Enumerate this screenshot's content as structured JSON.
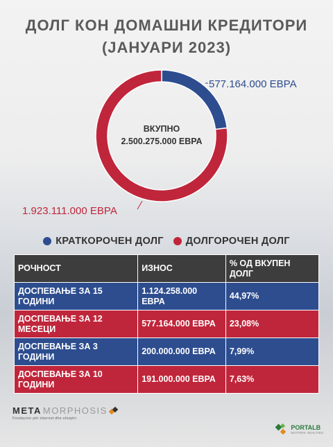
{
  "title_line1": "ДОЛГ КОН ДОМАШНИ КРЕДИТОРИ",
  "title_line2": "(ЈАНУАРИ 2023)",
  "chart_data": {
    "type": "pie",
    "donut": true,
    "title": "ДОЛГ КОН ДОМАШНИ КРЕДИТОРИ (ЈАНУАРИ 2023)",
    "center_label": "ВКУПНО",
    "center_value": "2.500.275.000 ЕВРА",
    "series": [
      {
        "name": "КРАТКОРОЧЕН ДОЛГ",
        "value": 577164000,
        "label": "577.164.000 ЕВРА",
        "color": "#2d4d8f"
      },
      {
        "name": "ДОЛГОРОЧЕН ДОЛГ",
        "value": 1923111000,
        "label": "1.923.111.000 ЕВРА",
        "color": "#c0263b"
      }
    ],
    "legend_placement": "bottom"
  },
  "table": {
    "headers": [
      "РОЧНОСТ",
      "ИЗНОС",
      "% ОД ВКУПЕН ДОЛГ"
    ],
    "rows": [
      {
        "maturity": "ДОСПЕВАЊЕ ЗА 15 ГОДИНИ",
        "amount": "1.124.258.000 ЕВРА",
        "percent": "44,97%",
        "color": "blue"
      },
      {
        "maturity": "ДОСПЕВАЊЕ ЗА 12 МЕСЕЦИ",
        "amount": "577.164.000 ЕВРА",
        "percent": "23,08%",
        "color": "red"
      },
      {
        "maturity": "ДОСПЕВАЊЕ ЗА 3 ГОДИНИ",
        "amount": "200.000.000 ЕВРА",
        "percent": "7,99%",
        "color": "blue"
      },
      {
        "maturity": "ДОСПЕВАЊЕ ЗА 10 ГОДИНИ",
        "amount": "191.000.000 ЕВРА",
        "percent": "7,63%",
        "color": "red"
      }
    ]
  },
  "footer": {
    "meta_bold": "META",
    "meta_light": "MORPHOSIS",
    "meta_tagline": "Fondacion për internet dhe shoqëri",
    "portalb": "PORTALB",
    "portalb_sub": "MATTERS. REALITIES"
  }
}
